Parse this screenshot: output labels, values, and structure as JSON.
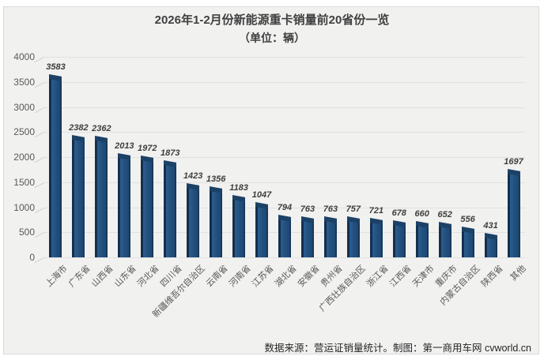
{
  "header": {
    "title_line1": "2026年1-2月份新能源重卡销量前20省份一览",
    "title_line2": "（单位：辆）"
  },
  "footer": {
    "source_note": "数据来源：营运证销量统计。制图：第一商用车网 cvworld.cn"
  },
  "chart_data": {
    "type": "bar",
    "title": "2026年1-2月份新能源重卡销量前20省份一览",
    "subtitle": "（单位：辆）",
    "categories": [
      "上海市",
      "广东省",
      "山西省",
      "山东省",
      "河北省",
      "四川省",
      "新疆维吾尔自治区",
      "云南省",
      "河南省",
      "江苏省",
      "湖北省",
      "安徽省",
      "贵州省",
      "广西壮族自治区",
      "浙江省",
      "江西省",
      "天津市",
      "重庆市",
      "内蒙古自治区",
      "陕西省",
      "其他"
    ],
    "values": [
      3583,
      2382,
      2362,
      2013,
      1972,
      1873,
      1423,
      1356,
      1183,
      1047,
      794,
      763,
      763,
      757,
      721,
      678,
      660,
      652,
      556,
      431,
      1697
    ],
    "xlabel": "",
    "ylabel": "",
    "ylim": [
      0,
      4000
    ],
    "yticks": [
      0,
      500,
      1000,
      1500,
      2000,
      2500,
      3000,
      3500,
      4000
    ],
    "grid": true,
    "legend_position": "none",
    "data_labels": true,
    "colors": {
      "bar_front": "#1F4E79",
      "bar_side_dark": "#142F4C",
      "bar_cap": "#1C4166",
      "panel_background": "#F1F1F0",
      "gridline": "#E1E1E3",
      "axis_text": "#595959",
      "data_label_text": "#3F3F3F",
      "title_text": "#404040"
    }
  }
}
